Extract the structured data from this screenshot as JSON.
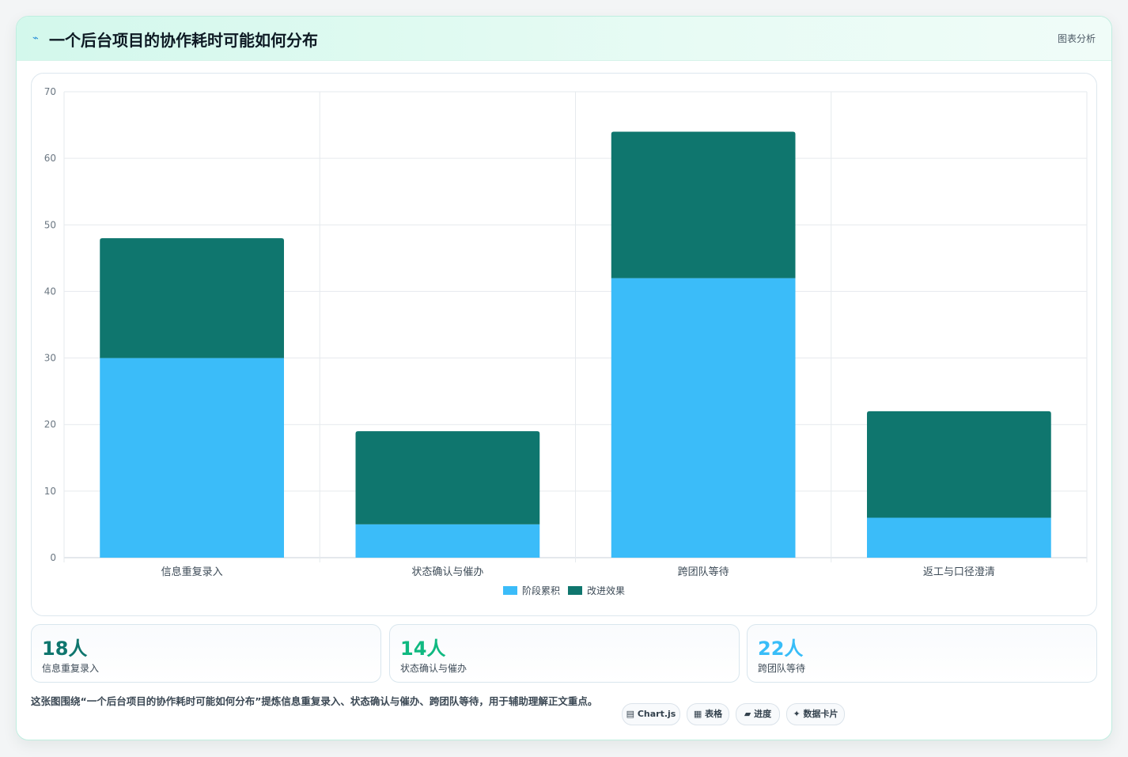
{
  "header": {
    "icon": "sparkle-icon",
    "title": "一个后台项目的协作耗时可能如何分布",
    "tag": "图表分析"
  },
  "chart_data": {
    "type": "bar",
    "stacked": true,
    "categories": [
      "信息重复录入",
      "状态确认与催办",
      "跨团队等待",
      "返工与口径澄清"
    ],
    "series": [
      {
        "name": "阶段累积",
        "values": [
          30,
          5,
          42,
          6
        ],
        "color": "#3bbcf9"
      },
      {
        "name": "改进效果",
        "values": [
          18,
          14,
          22,
          16
        ],
        "color": "#0f766e"
      }
    ],
    "ylim": [
      0,
      70
    ],
    "yticks": [
      0,
      10,
      20,
      30,
      40,
      50,
      60,
      70
    ],
    "grid": true,
    "legend_position": "bottom"
  },
  "stats": [
    {
      "value": "18人",
      "label": "信息重复录入",
      "color": "#0f766e"
    },
    {
      "value": "14人",
      "label": "状态确认与催办",
      "color": "#10b981"
    },
    {
      "value": "22人",
      "label": "跨团队等待",
      "color": "#38bdf8"
    }
  ],
  "caption": "这张图围绕“一个后台项目的协作耗时可能如何分布”提炼信息重复录入、状态确认与催办、跨团队等待，用于辅助理解正文重点。",
  "chips": [
    {
      "label": "▤ Chart.js"
    },
    {
      "label": "▦ 表格"
    },
    {
      "label": "▰ 进度"
    },
    {
      "label": "✦ 数据卡片"
    }
  ]
}
